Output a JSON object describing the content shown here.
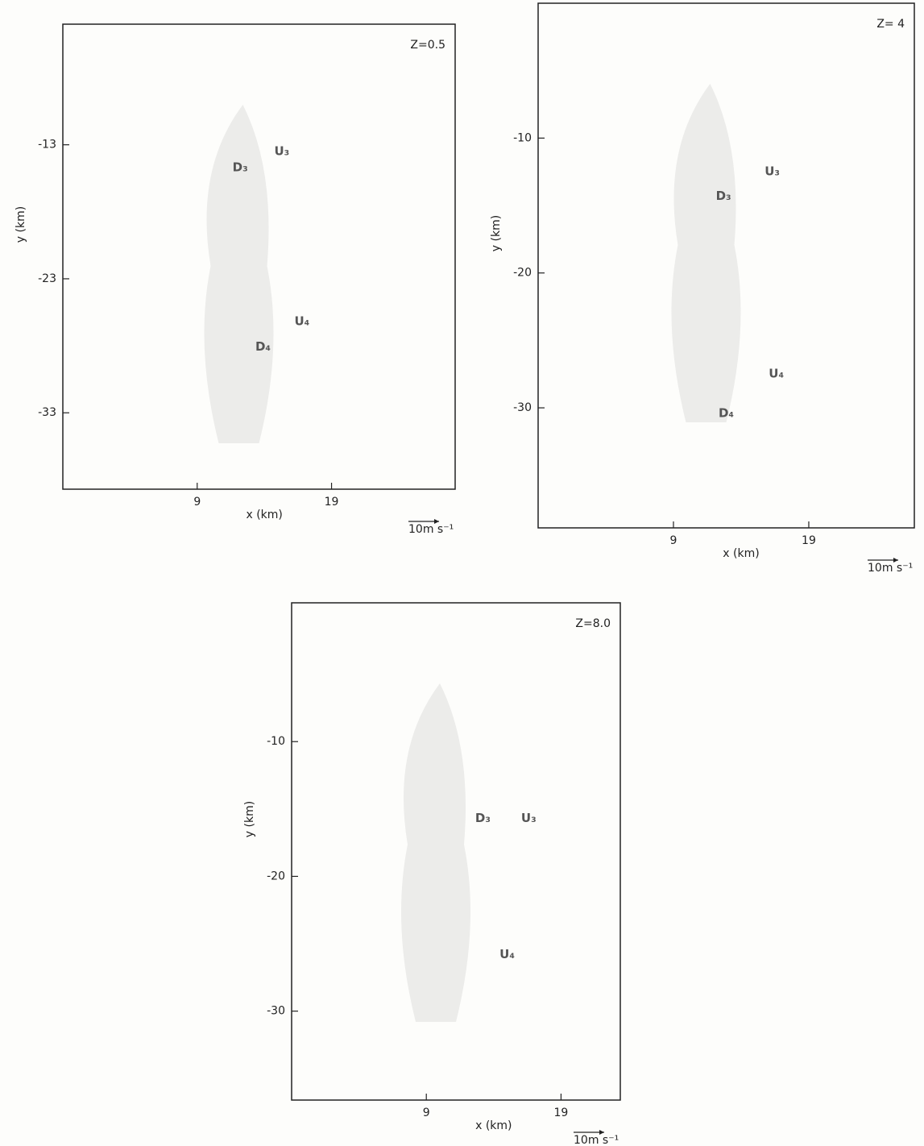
{
  "chart_data": [
    {
      "type": "vector",
      "annotation": "Z=0.5",
      "x_label": "x (km)",
      "y_label": "y (km)",
      "scale_label": "10m s⁻¹",
      "xlim": [
        -1,
        28.2
      ],
      "ylim": [
        -38.7,
        -4
      ],
      "xticks": [
        9,
        19
      ],
      "yticks": [
        -13,
        -23,
        -33
      ],
      "labels": [
        {
          "text": "D₃",
          "x": 12.2,
          "y": -14.7
        },
        {
          "text": "U₃",
          "x": 15.3,
          "y": -13.5
        },
        {
          "text": "U₄",
          "x": 16.8,
          "y": -26.2
        },
        {
          "text": "D₄",
          "x": 13.9,
          "y": -28.1
        }
      ]
    },
    {
      "type": "vector",
      "annotation": "Z= 4",
      "x_label": "x (km)",
      "y_label": "y (km)",
      "scale_label": "10m s⁻¹",
      "xlim": [
        -1,
        26.8
      ],
      "ylim": [
        -38.9,
        0
      ],
      "xticks": [
        9,
        19
      ],
      "yticks": [
        -10,
        -20,
        -30
      ],
      "labels": [
        {
          "text": "U₃",
          "x": 16.3,
          "y": -12.5
        },
        {
          "text": "D₃",
          "x": 12.7,
          "y": -14.3
        },
        {
          "text": "U₄",
          "x": 16.6,
          "y": -27.5
        },
        {
          "text": "D₄",
          "x": 12.9,
          "y": -30.4
        }
      ]
    },
    {
      "type": "vector",
      "annotation": "Z=8.0",
      "x_label": "x (km)",
      "y_label": "y (km)",
      "scale_label": "10m s⁻¹",
      "xlim": [
        -1,
        23.4
      ],
      "ylim": [
        -36.6,
        0.3
      ],
      "xticks": [
        9,
        19
      ],
      "yticks": [
        -10,
        -20,
        -30
      ],
      "labels": [
        {
          "text": "D₃",
          "x": 13.2,
          "y": -15.7
        },
        {
          "text": "U₃",
          "x": 16.6,
          "y": -15.7
        },
        {
          "text": "U₄",
          "x": 15,
          "y": -25.8
        }
      ]
    }
  ]
}
